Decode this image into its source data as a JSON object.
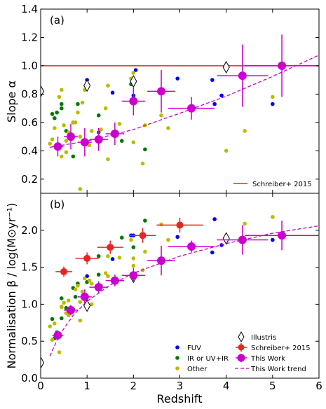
{
  "chart_data": [
    {
      "type": "scatter",
      "panel_label": "(a)",
      "xlabel": "",
      "ylabel": "Slope α",
      "xlim": [
        0,
        6
      ],
      "ylim": [
        0.1,
        1.4
      ],
      "xticks": [
        0,
        1,
        2,
        3,
        4,
        5,
        6
      ],
      "yticks": [
        0.2,
        0.4,
        0.6,
        0.8,
        1.0,
        1.2,
        1.4
      ],
      "ytick_labels": [
        "0.2",
        "0.4",
        "0.6",
        "0.8",
        "1.0",
        "1.2",
        "1.4"
      ],
      "legend": {
        "position": "bottom-right",
        "entries": [
          "Schreiber+ 2015"
        ]
      },
      "series": [
        {
          "name": "FUV",
          "color": "#0000ee",
          "marker": "dot",
          "points": [
            [
              1.0,
              0.9
            ],
            [
              1.55,
              0.81
            ],
            [
              2.0,
              0.79
            ],
            [
              2.05,
              0.97
            ],
            [
              2.95,
              0.91
            ],
            [
              3.7,
              0.9
            ],
            [
              3.9,
              0.79
            ],
            [
              3.75,
              0.73
            ],
            [
              5.0,
              0.73
            ]
          ]
        },
        {
          "name": "IR or UV+IR",
          "color": "#007700",
          "marker": "dot",
          "points": [
            [
              0.25,
              0.66
            ],
            [
              0.35,
              0.67
            ],
            [
              0.45,
              0.73
            ],
            [
              0.45,
              0.7
            ],
            [
              0.55,
              0.54
            ],
            [
              0.7,
              0.6
            ],
            [
              0.8,
              0.73
            ],
            [
              1.0,
              0.86
            ],
            [
              1.25,
              0.65
            ],
            [
              1.25,
              0.53
            ],
            [
              1.75,
              0.47
            ],
            [
              1.95,
              0.87
            ],
            [
              2.25,
              0.41
            ],
            [
              0.7,
              0.36
            ],
            [
              0.3,
              0.63
            ]
          ]
        },
        {
          "name": "Other",
          "color": "#bbbb00",
          "marker": "dot",
          "points": [
            [
              0.2,
              0.45
            ],
            [
              0.25,
              0.48
            ],
            [
              0.3,
              0.56
            ],
            [
              0.4,
              0.78
            ],
            [
              0.45,
              0.83
            ],
            [
              0.5,
              0.58
            ],
            [
              0.55,
              0.47
            ],
            [
              0.55,
              0.39
            ],
            [
              0.6,
              0.53
            ],
            [
              0.7,
              0.6
            ],
            [
              0.75,
              0.6
            ],
            [
              0.8,
              0.67
            ],
            [
              0.85,
              0.5
            ],
            [
              0.9,
              0.74
            ],
            [
              0.95,
              0.83
            ],
            [
              1.05,
              0.44
            ],
            [
              1.1,
              0.54
            ],
            [
              1.3,
              0.55
            ],
            [
              1.4,
              0.7
            ],
            [
              1.45,
              0.86
            ],
            [
              1.45,
              0.34
            ],
            [
              1.7,
              0.59
            ],
            [
              1.95,
              0.91
            ],
            [
              2.0,
              0.95
            ],
            [
              2.0,
              0.46
            ],
            [
              2.2,
              0.31
            ],
            [
              2.25,
              0.58
            ],
            [
              2.6,
              0.65
            ],
            [
              2.75,
              0.56
            ],
            [
              4.0,
              0.4
            ],
            [
              4.4,
              0.54
            ],
            [
              5.0,
              0.78
            ],
            [
              0.85,
              0.13
            ],
            [
              0.45,
              0.36
            ]
          ]
        },
        {
          "name": "Illustris",
          "color": "#000000",
          "marker": "diamond",
          "points": [
            [
              0.0,
              0.82
            ],
            [
              1.0,
              0.86
            ],
            [
              2.0,
              0.89
            ],
            [
              4.0,
              0.99
            ]
          ]
        },
        {
          "name": "This Work",
          "color": "#cc00cc",
          "marker": "big-dot",
          "points": [
            [
              0.37,
              0.43
            ],
            [
              0.65,
              0.5
            ],
            [
              0.95,
              0.46
            ],
            [
              1.25,
              0.48
            ],
            [
              1.6,
              0.52
            ],
            [
              2.0,
              0.75
            ],
            [
              2.6,
              0.82
            ],
            [
              3.25,
              0.7
            ],
            [
              4.35,
              0.93
            ],
            [
              5.2,
              1.0
            ]
          ],
          "yerr": [
            0.07,
            0.09,
            0.1,
            0.08,
            0.08,
            0.1,
            0.15,
            0.08,
            0.22,
            0.22
          ],
          "xerr": [
            0.12,
            0.15,
            0.15,
            0.2,
            0.2,
            0.25,
            0.3,
            0.5,
            0.55,
            0.8
          ]
        }
      ],
      "reference_line": {
        "name": "Schreiber+ 2015",
        "y": 1.0,
        "color": "#ee2222"
      },
      "trend": {
        "name": "This Work trend",
        "color": "#cc00cc",
        "points": [
          [
            0.2,
            0.425
          ],
          [
            1,
            0.469
          ],
          [
            2,
            0.55
          ],
          [
            3,
            0.665
          ],
          [
            4,
            0.785
          ],
          [
            5,
            0.925
          ],
          [
            6,
            1.075
          ]
        ]
      }
    },
    {
      "type": "scatter",
      "panel_label": "(b)",
      "xlabel": "Redshift",
      "ylabel": "Normalisation β / log(M⊙yr⁻¹)",
      "xlim": [
        0,
        6
      ],
      "ylim": [
        0.0,
        2.5
      ],
      "xticks": [
        0,
        1,
        2,
        3,
        4,
        5,
        6
      ],
      "xtick_labels": [
        "0",
        "1",
        "2",
        "3",
        "4",
        "5",
        "6"
      ],
      "yticks": [
        0.0,
        0.5,
        1.0,
        1.5,
        2.0
      ],
      "ytick_labels": [
        "0.0",
        "0.5",
        "1.0",
        "1.5",
        "2.0"
      ],
      "legend": {
        "position": "bottom-right",
        "entries": [
          "FUV",
          "IR or UV+IR",
          "Other",
          "Illustris",
          "Schreiber+ 2015",
          "This Work",
          "This Work trend"
        ]
      },
      "series": [
        {
          "name": "FUV",
          "color": "#0000ee",
          "marker": "dot",
          "points": [
            [
              1.0,
              1.38
            ],
            [
              1.55,
              1.61
            ],
            [
              1.95,
              1.93
            ],
            [
              2.0,
              1.93
            ],
            [
              2.95,
              1.91
            ],
            [
              3.7,
              1.7
            ],
            [
              3.9,
              1.8
            ],
            [
              3.75,
              2.15
            ],
            [
              5.0,
              1.87
            ]
          ]
        },
        {
          "name": "IR or UV+IR",
          "color": "#007700",
          "marker": "dot",
          "points": [
            [
              0.25,
              0.8
            ],
            [
              0.3,
              0.54
            ],
            [
              0.45,
              1.08
            ],
            [
              0.45,
              0.81
            ],
            [
              0.55,
              0.95
            ],
            [
              0.75,
              1.1
            ],
            [
              0.8,
              1.28
            ],
            [
              1.0,
              1.3
            ],
            [
              1.25,
              1.4
            ],
            [
              1.25,
              1.65
            ],
            [
              1.75,
              1.9
            ],
            [
              2.0,
              1.77
            ],
            [
              2.25,
              2.13
            ],
            [
              0.7,
              1.22
            ],
            [
              0.35,
              0.62
            ]
          ]
        },
        {
          "name": "Other",
          "color": "#bbbb00",
          "marker": "dot",
          "points": [
            [
              0.2,
              0.7
            ],
            [
              0.25,
              0.52
            ],
            [
              0.3,
              0.74
            ],
            [
              0.4,
              0.35
            ],
            [
              0.45,
              0.97
            ],
            [
              0.5,
              1.02
            ],
            [
              0.55,
              0.88
            ],
            [
              0.6,
              1.05
            ],
            [
              0.7,
              0.93
            ],
            [
              0.75,
              1.2
            ],
            [
              0.8,
              1.25
            ],
            [
              0.85,
              0.78
            ],
            [
              0.9,
              1.17
            ],
            [
              0.95,
              1.35
            ],
            [
              1.05,
              1.32
            ],
            [
              1.1,
              1.28
            ],
            [
              1.3,
              1.25
            ],
            [
              1.4,
              1.42
            ],
            [
              1.45,
              1.38
            ],
            [
              1.45,
              1.65
            ],
            [
              1.7,
              1.63
            ],
            [
              1.95,
              1.87
            ],
            [
              2.0,
              1.62
            ],
            [
              2.0,
              1.52
            ],
            [
              2.2,
              1.46
            ],
            [
              2.25,
              1.71
            ],
            [
              2.6,
              2.08
            ],
            [
              2.75,
              1.87
            ],
            [
              4.0,
              1.91
            ],
            [
              4.4,
              2.09
            ],
            [
              5.0,
              2.18
            ],
            [
              0.85,
              1.03
            ],
            [
              0.45,
              0.96
            ],
            [
              1.1,
              1.0
            ],
            [
              0.6,
              0.85
            ]
          ]
        },
        {
          "name": "Illustris",
          "color": "#000000",
          "marker": "diamond",
          "points": [
            [
              0.0,
              0.21
            ],
            [
              1.0,
              0.98
            ],
            [
              2.0,
              1.37
            ],
            [
              4.0,
              1.89
            ]
          ]
        },
        {
          "name": "Schreiber+ 2015",
          "color": "#ee2222",
          "marker": "big-dot",
          "points": [
            [
              0.5,
              1.44
            ],
            [
              1.0,
              1.62
            ],
            [
              1.5,
              1.77
            ],
            [
              2.2,
              1.93
            ],
            [
              3.0,
              2.07
            ]
          ],
          "yerr": [
            0.07,
            0.08,
            0.09,
            0.1,
            0.1
          ],
          "xerr": [
            0.18,
            0.25,
            0.28,
            0.28,
            0.5
          ]
        },
        {
          "name": "This Work",
          "color": "#cc00cc",
          "marker": "big-dot",
          "points": [
            [
              0.37,
              0.58
            ],
            [
              0.65,
              0.92
            ],
            [
              0.95,
              1.1
            ],
            [
              1.25,
              1.23
            ],
            [
              1.6,
              1.32
            ],
            [
              2.0,
              1.39
            ],
            [
              2.6,
              1.59
            ],
            [
              3.25,
              1.78
            ],
            [
              4.35,
              1.87
            ],
            [
              5.2,
              1.93
            ]
          ],
          "yerr": [
            0.06,
            0.07,
            0.1,
            0.08,
            0.08,
            0.1,
            0.2,
            0.08,
            0.2,
            0.2
          ],
          "xerr": [
            0.12,
            0.15,
            0.15,
            0.2,
            0.2,
            0.25,
            0.3,
            0.5,
            0.55,
            0.8
          ]
        }
      ],
      "trend": {
        "name": "This Work trend",
        "color": "#cc00cc",
        "points": [
          [
            0.2,
            0.3
          ],
          [
            0.4,
            0.58
          ],
          [
            0.7,
            0.85
          ],
          [
            1.0,
            1.04
          ],
          [
            1.5,
            1.26
          ],
          [
            2.0,
            1.42
          ],
          [
            3.0,
            1.65
          ],
          [
            4.0,
            1.82
          ],
          [
            5.0,
            1.96
          ],
          [
            6.0,
            2.06
          ]
        ]
      }
    }
  ]
}
